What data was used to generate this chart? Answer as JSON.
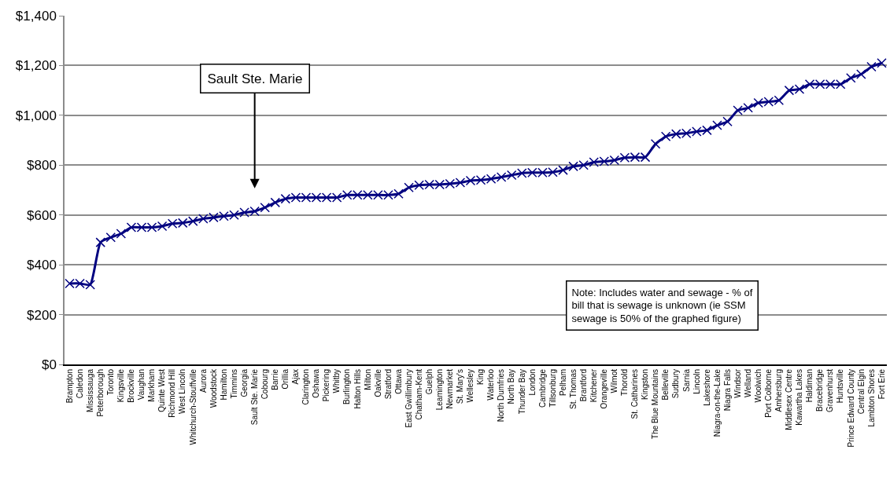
{
  "chart_data": {
    "type": "line",
    "categories": [
      "Brampton",
      "Caledon",
      "Mississauga",
      "Peterborough",
      "Toronto",
      "Kingsville",
      "Brockville",
      "Vaughan",
      "Markham",
      "Quinte West",
      "Richmond Hill",
      "West Lincoln",
      "Whitchurch-Stouffville",
      "Aurora",
      "Woodstock",
      "Hamilton",
      "Timmins",
      "Georgia",
      "Sault Ste. Marie",
      "Cobourg",
      "Barrie",
      "Orillia",
      "Ajax",
      "Clarington",
      "Oshawa",
      "Pickering",
      "Whitby",
      "Burlington",
      "Halton Hills",
      "Milton",
      "Oakville",
      "Stratford",
      "Ottawa",
      "East Gwillimbury",
      "Chatham-Kent",
      "Guelph",
      "Leamington",
      "Newmarket",
      "St. Mary's",
      "Wellesley",
      "King",
      "Waterloo",
      "North Dumfries",
      "North Bay",
      "Thunder Bay",
      "London",
      "Cambridge",
      "Tillsonburg",
      "Pelham",
      "St. Thomas",
      "Brantford",
      "Kitchener",
      "Orangeville",
      "Wilmot",
      "Thorold",
      "St. Catharines",
      "Kingston",
      "The Blue Mountains",
      "Belleville",
      "Sudbury",
      "Sarnia",
      "Lincoln",
      "Lakeshore",
      "Niagra-on-the-Lake",
      "Niagra Falls",
      "Windsor",
      "Welland",
      "Woolwich",
      "Port Colborne",
      "Amhersburg",
      "Middlesex Centre",
      "Kawartha Lakes",
      "Haldiman",
      "Bracebridge",
      "Gravenhurst",
      "Huntsville",
      "Prince Edward County",
      "Central Elgin",
      "Lambton Shores",
      "Fort Erie"
    ],
    "series": [
      {
        "color": "#000080",
        "values": [
          325,
          325,
          320,
          490,
          510,
          525,
          550,
          550,
          550,
          555,
          565,
          568,
          575,
          585,
          590,
          595,
          600,
          610,
          615,
          630,
          650,
          665,
          670,
          670,
          670,
          670,
          670,
          680,
          680,
          680,
          680,
          680,
          685,
          710,
          720,
          722,
          722,
          725,
          730,
          738,
          740,
          745,
          752,
          760,
          768,
          770,
          770,
          772,
          780,
          795,
          800,
          812,
          815,
          820,
          830,
          832,
          832,
          885,
          915,
          925,
          928,
          935,
          940,
          960,
          975,
          1020,
          1030,
          1050,
          1055,
          1060,
          1100,
          1105,
          1125,
          1125,
          1125,
          1125,
          1150,
          1165,
          1195,
          1210
        ]
      }
    ],
    "ylim": [
      0,
      1400
    ],
    "yticks": [
      {
        "value": 0,
        "label": "$0"
      },
      {
        "value": 200,
        "label": "$200"
      },
      {
        "value": 400,
        "label": "$400"
      },
      {
        "value": 600,
        "label": "$600"
      },
      {
        "value": 800,
        "label": "$800"
      },
      {
        "value": 1000,
        "label": "$1,000"
      },
      {
        "value": 1200,
        "label": "$1,200"
      },
      {
        "value": 1400,
        "label": "$1,400"
      }
    ],
    "grid": "y",
    "marker": "cross",
    "line_style": "solid",
    "annotations": [
      "Sault Ste. Marie",
      "Note: Includes water and sewage - % of bill that is sewage is unknown (ie SSM sewage is 50% of the graphed figure)"
    ]
  }
}
